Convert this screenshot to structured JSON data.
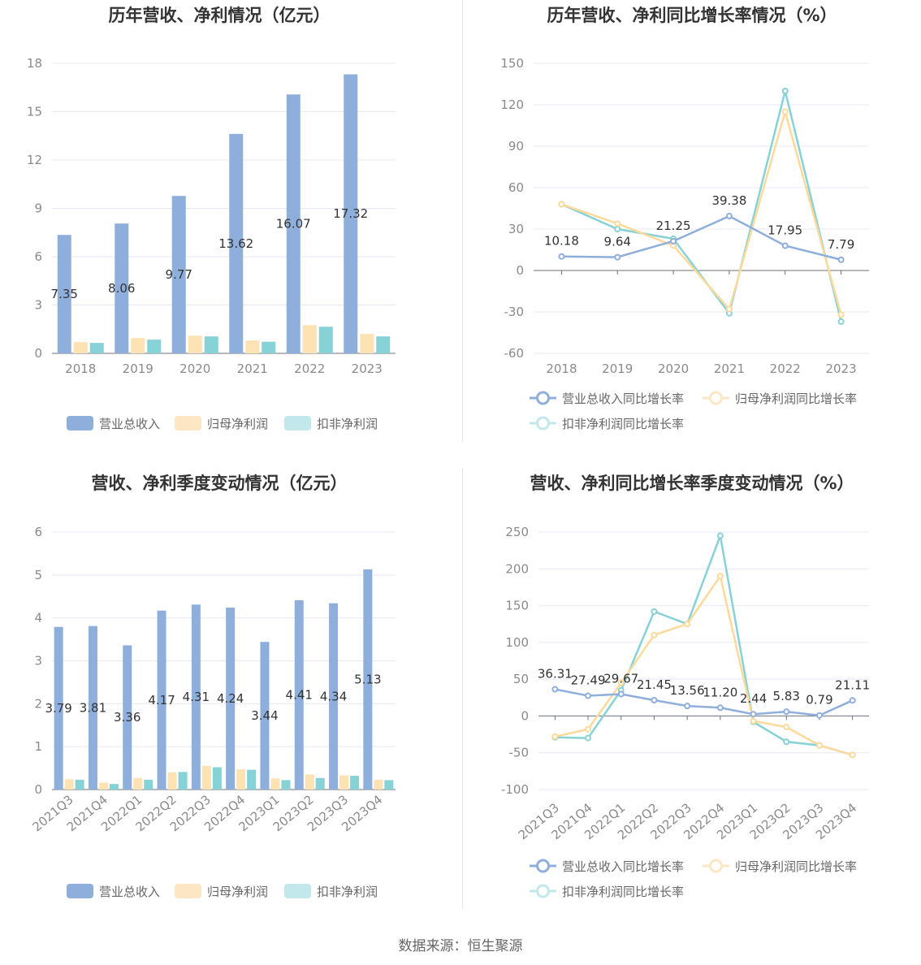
{
  "source_label": "数据来源：恒生聚源",
  "colors": {
    "revenue": "#8eaedc",
    "parent_profit": "#fde2b4",
    "deducted_profit": "#86d2d6",
    "rev_line": "#8eaedc",
    "np_line": "#fdd99a",
    "ded_line": "#86d2d6",
    "axis": "#6e7079",
    "grid": "#e6e9f0"
  },
  "chart_data": [
    {
      "type": "bar",
      "title": "历年营收、净利情况（亿元）",
      "categories": [
        "2018",
        "2019",
        "2020",
        "2021",
        "2022",
        "2023"
      ],
      "ylim": [
        0,
        18
      ],
      "yticks": [
        0,
        3,
        6,
        9,
        12,
        15,
        18
      ],
      "grid": true,
      "legend_position": "bottom",
      "series": [
        {
          "name": "营业总收入",
          "values": [
            7.35,
            8.06,
            9.77,
            13.62,
            16.07,
            17.32
          ],
          "labels": [
            "7.35",
            "8.06",
            "9.77",
            "13.62",
            "16.07",
            "17.32"
          ]
        },
        {
          "name": "归母净利润",
          "values": [
            0.7,
            0.95,
            1.1,
            0.8,
            1.75,
            1.2
          ]
        },
        {
          "name": "扣非净利润",
          "values": [
            0.65,
            0.85,
            1.05,
            0.72,
            1.65,
            1.05
          ]
        }
      ]
    },
    {
      "type": "line",
      "title": "历年营收、净利同比增长率情况（%）",
      "categories": [
        "2018",
        "2019",
        "2020",
        "2021",
        "2022",
        "2023"
      ],
      "ylim": [
        -60,
        150
      ],
      "yticks": [
        -60,
        -30,
        0,
        30,
        60,
        90,
        120,
        150
      ],
      "grid": true,
      "legend_position": "bottom",
      "series": [
        {
          "name": "营业总收入同比增长率",
          "values": [
            10.18,
            9.64,
            21.25,
            39.38,
            17.95,
            7.79
          ],
          "labels": [
            "10.18",
            "9.64",
            "21.25",
            "39.38",
            "17.95",
            "7.79"
          ]
        },
        {
          "name": "归母净利润同比增长率",
          "values": [
            48,
            34,
            18,
            -28,
            115,
            -32
          ]
        },
        {
          "name": "扣非净利润同比增长率",
          "values": [
            48,
            30,
            23,
            -31,
            130,
            -37
          ]
        }
      ]
    },
    {
      "type": "bar",
      "title": "营收、净利季度变动情况（亿元）",
      "categories": [
        "2021Q3",
        "2021Q4",
        "2022Q1",
        "2022Q2",
        "2022Q3",
        "2022Q4",
        "2023Q1",
        "2023Q2",
        "2023Q3",
        "2023Q4"
      ],
      "ylim": [
        0,
        6
      ],
      "yticks": [
        0,
        1,
        2,
        3,
        4,
        5,
        6
      ],
      "grid": true,
      "legend_position": "bottom",
      "series": [
        {
          "name": "营业总收入",
          "values": [
            3.79,
            3.81,
            3.36,
            4.17,
            4.31,
            4.24,
            3.44,
            4.41,
            4.34,
            5.13
          ],
          "labels": [
            "3.79",
            "3.81",
            "3.36",
            "4.17",
            "4.31",
            "4.24",
            "3.44",
            "4.41",
            "4.34",
            "5.13"
          ]
        },
        {
          "name": "归母净利润",
          "values": [
            0.24,
            0.16,
            0.27,
            0.4,
            0.55,
            0.47,
            0.26,
            0.35,
            0.33,
            0.23
          ]
        },
        {
          "name": "扣非净利润",
          "values": [
            0.23,
            0.13,
            0.23,
            0.41,
            0.52,
            0.46,
            0.22,
            0.27,
            0.32,
            0.22
          ]
        }
      ]
    },
    {
      "type": "line",
      "title": "营收、净利同比增长率季度变动情况（%）",
      "categories": [
        "2021Q3",
        "2021Q4",
        "2022Q1",
        "2022Q2",
        "2022Q3",
        "2022Q4",
        "2023Q1",
        "2023Q2",
        "2023Q3",
        "2023Q4"
      ],
      "ylim": [
        -100,
        250
      ],
      "yticks": [
        -100,
        -50,
        0,
        50,
        100,
        150,
        200,
        250
      ],
      "grid": true,
      "legend_position": "bottom",
      "series": [
        {
          "name": "营业总收入同比增长率",
          "values": [
            36.31,
            27.49,
            29.67,
            21.45,
            13.56,
            11.2,
            2.44,
            5.83,
            0.79,
            21.11
          ],
          "labels": [
            "36.31",
            "27.49",
            "29.67",
            "21.45",
            "13.56",
            "11.20",
            "2.44",
            "5.83",
            "0.79",
            "21.11"
          ]
        },
        {
          "name": "归母净利润同比增长率",
          "values": [
            -28,
            -18,
            45,
            110,
            125,
            190,
            -7,
            -15,
            -40,
            -53
          ]
        },
        {
          "name": "扣非净利润同比增长率",
          "values": [
            -29,
            -30,
            35,
            142,
            125,
            245,
            -8,
            -35,
            -40,
            -53
          ]
        }
      ]
    }
  ]
}
